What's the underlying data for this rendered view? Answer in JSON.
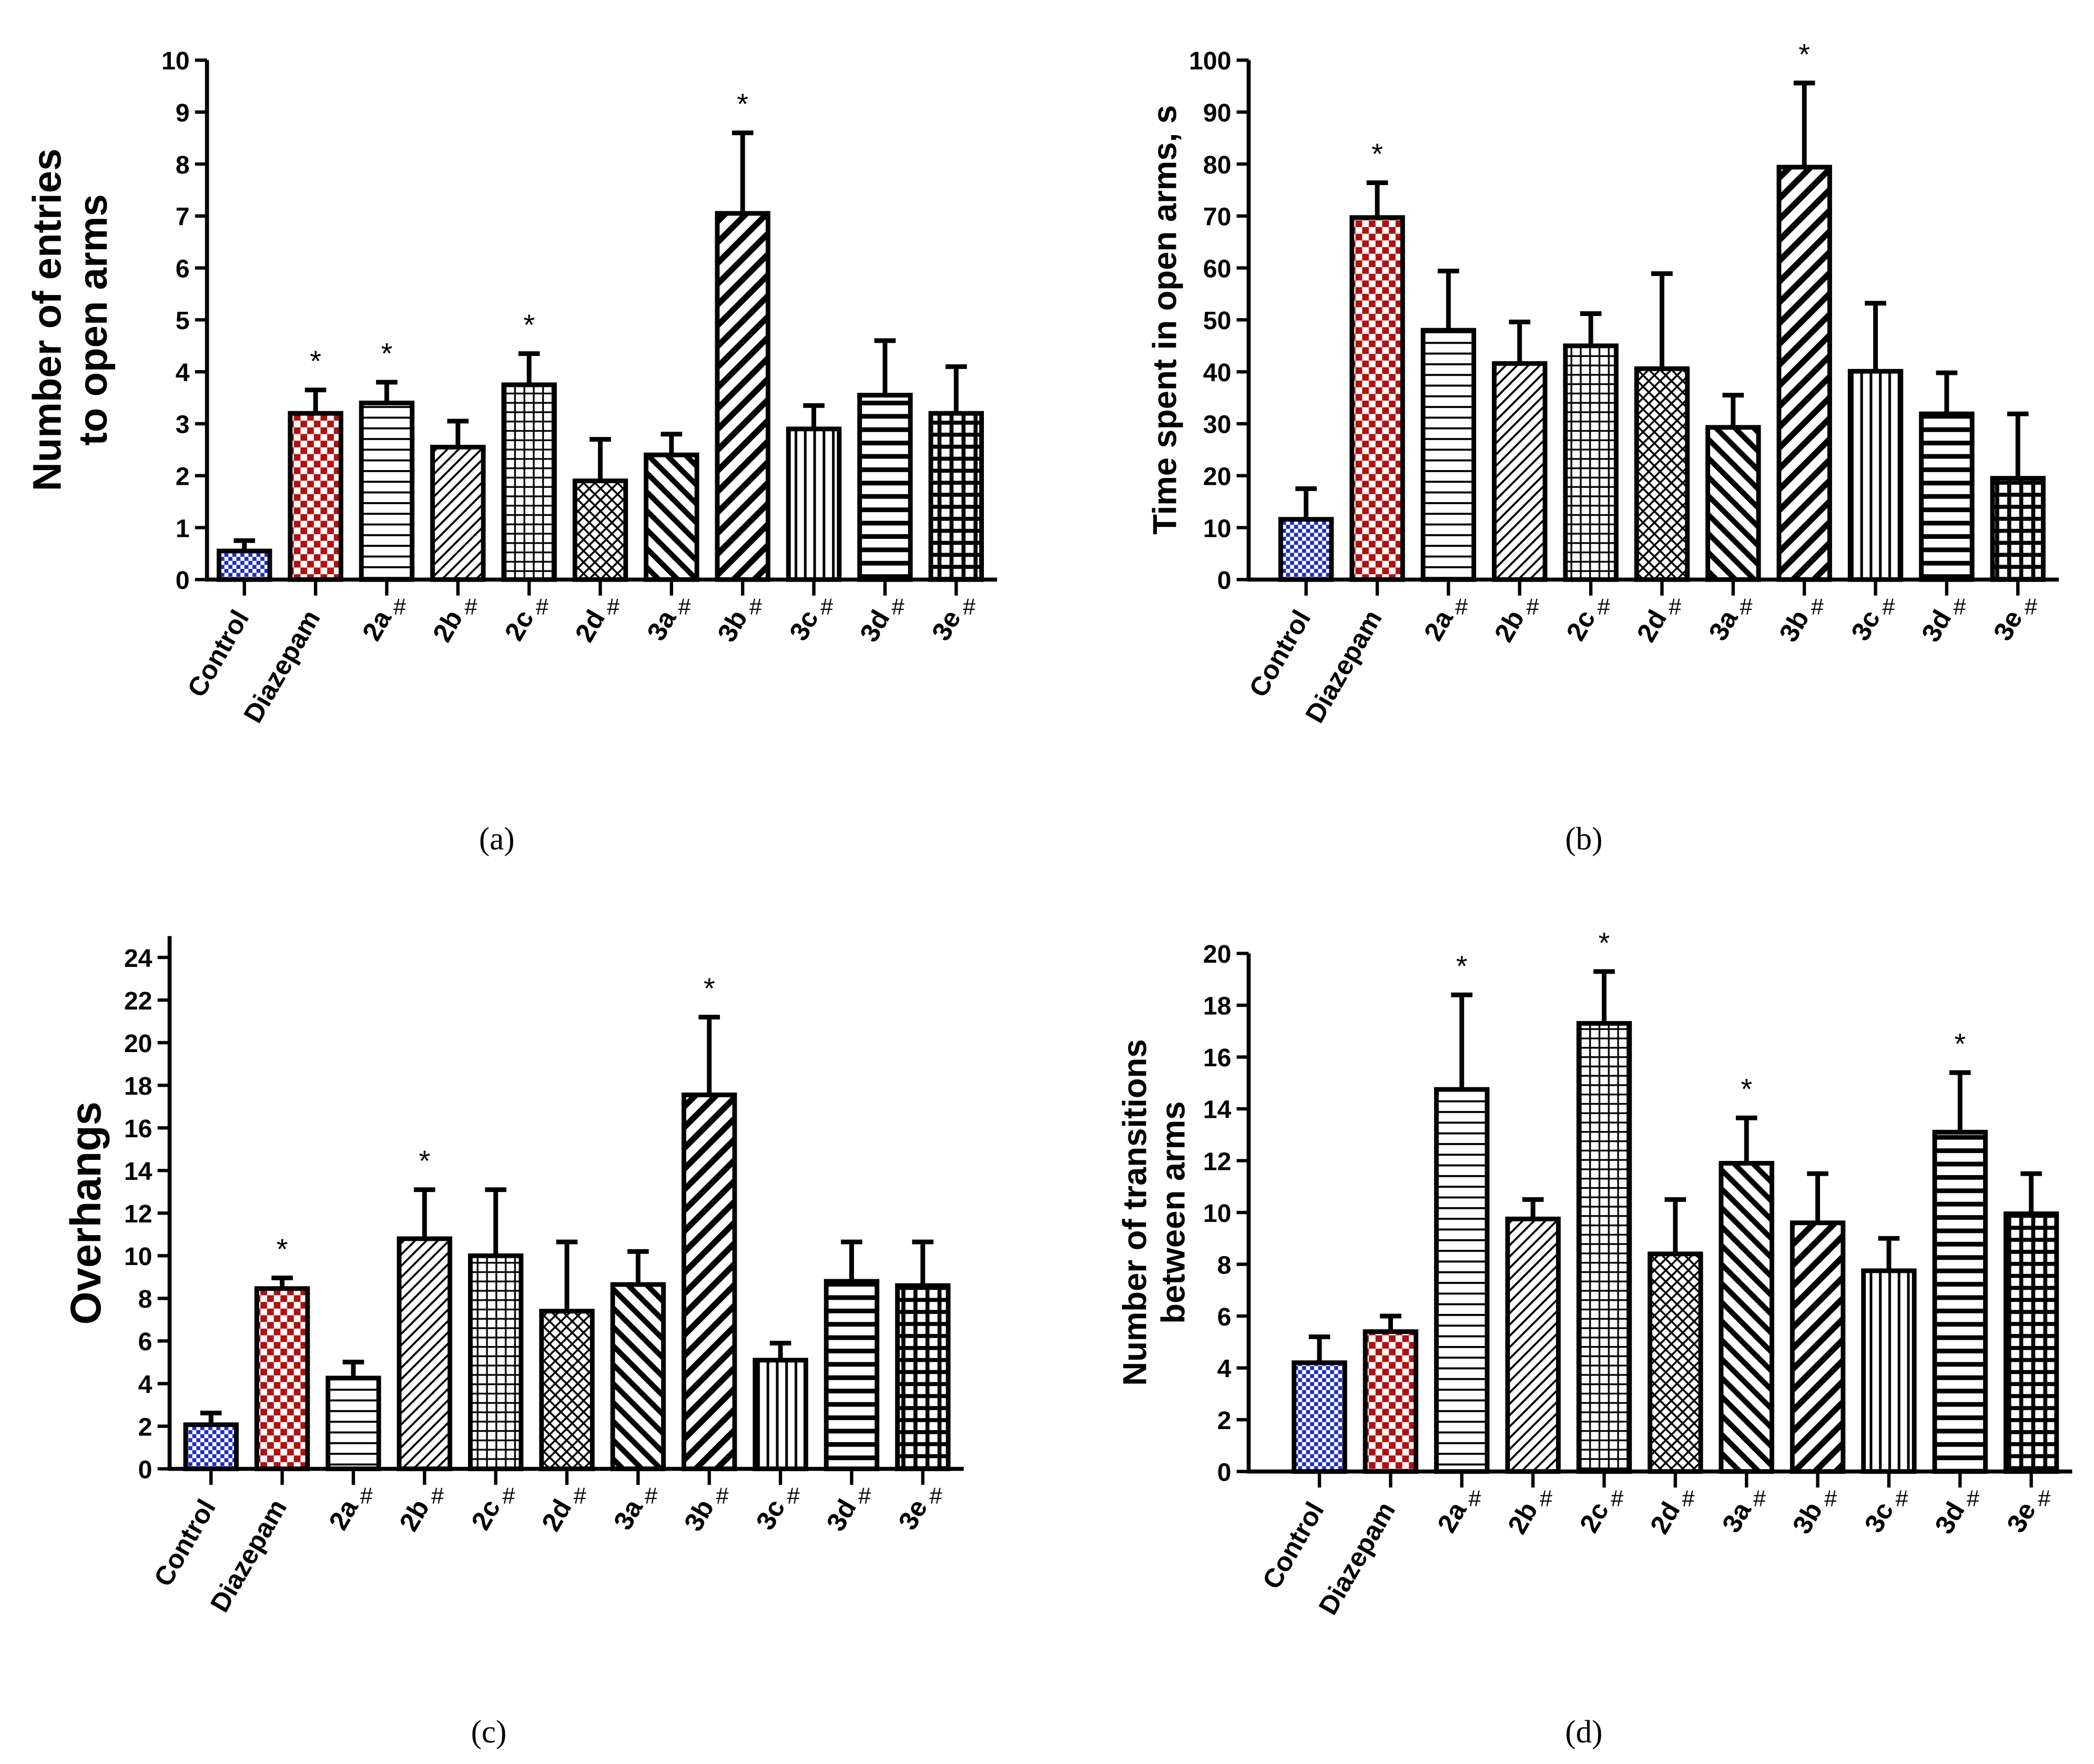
{
  "colors": {
    "control": "#1f2fb5",
    "diazepam": "#b01010",
    "ink": "#000000"
  },
  "chart_data": [
    {
      "type": "bar",
      "caption": "(a)",
      "ylabel": [
        "Number of entries",
        "to open arms"
      ],
      "ylim": [
        0,
        10
      ],
      "ystep": 1,
      "categories": [
        "Control",
        "Diazepam",
        "2a",
        "2b",
        "2c",
        "2d",
        "3a",
        "3b",
        "3c",
        "3d",
        "3e"
      ],
      "hash_marks": [
        "",
        "",
        "#",
        "#",
        "#",
        "#",
        "#",
        "#",
        "#",
        "#",
        "#"
      ],
      "values": [
        0.55,
        3.2,
        3.4,
        2.55,
        3.75,
        1.9,
        2.4,
        7.05,
        2.9,
        3.55,
        3.2
      ],
      "errors": [
        0.2,
        0.45,
        0.4,
        0.5,
        0.6,
        0.8,
        0.4,
        1.55,
        0.45,
        1.05,
        0.9
      ],
      "significance": [
        "",
        "*",
        "*",
        "",
        "*",
        "",
        "",
        "*",
        "",
        "",
        ""
      ]
    },
    {
      "type": "bar",
      "caption": "(b)",
      "ylabel": [
        "Time spent in open arms, s"
      ],
      "ylim": [
        0,
        100
      ],
      "ystep": 10,
      "categories": [
        "Control",
        "Diazepam",
        "2a",
        "2b",
        "2c",
        "2d",
        "3a",
        "3b",
        "3c",
        "3d",
        "3e"
      ],
      "hash_marks": [
        "",
        "",
        "#",
        "#",
        "#",
        "#",
        "#",
        "#",
        "#",
        "#",
        "#"
      ],
      "values": [
        11.6,
        69.7,
        48,
        41.6,
        45,
        40.6,
        29.3,
        79.4,
        40.1,
        31.9,
        19.5
      ],
      "errors": [
        5.9,
        6.7,
        11.4,
        8,
        6.2,
        18.3,
        6.2,
        16.2,
        13.1,
        7.9,
        12.4
      ],
      "significance": [
        "",
        "*",
        "",
        "",
        "",
        "",
        "",
        "*",
        "",
        "",
        ""
      ]
    },
    {
      "type": "bar",
      "caption": "(c)",
      "ylabel": [
        "Overhangs"
      ],
      "ylim": [
        0,
        24
      ],
      "ystep": 2,
      "categories": [
        "Control",
        "Diazepam",
        "2a",
        "2b",
        "2c",
        "2d",
        "3a",
        "3b",
        "3c",
        "3d",
        "3e"
      ],
      "hash_marks": [
        "",
        "",
        "#",
        "#",
        "#",
        "#",
        "#",
        "#",
        "#",
        "#",
        "#"
      ],
      "values": [
        2.07,
        8.46,
        4.26,
        10.8,
        10.0,
        7.4,
        8.65,
        17.55,
        5.1,
        8.8,
        8.6
      ],
      "errors": [
        0.55,
        0.5,
        0.75,
        2.3,
        3.1,
        3.25,
        1.55,
        3.65,
        0.8,
        1.85,
        2.05
      ],
      "significance": [
        "",
        "*",
        "",
        "*",
        "",
        "",
        "",
        "*",
        "",
        "",
        ""
      ]
    },
    {
      "type": "bar",
      "caption": "(d)",
      "ylabel": [
        "Number of transitions",
        "between arms"
      ],
      "ylim": [
        0,
        20
      ],
      "ystep": 2,
      "categories": [
        "Control",
        "Diazepam",
        "2a",
        "2b",
        "2c",
        "2d",
        "3a",
        "3b",
        "3c",
        "3d",
        "3e"
      ],
      "hash_marks": [
        "",
        "",
        "#",
        "#",
        "#",
        "#",
        "#",
        "#",
        "#",
        "#",
        "#"
      ],
      "values": [
        4.2,
        5.4,
        14.75,
        9.75,
        17.3,
        8.4,
        11.9,
        9.6,
        7.75,
        13.1,
        9.95
      ],
      "errors": [
        1.0,
        0.6,
        3.65,
        0.75,
        2.0,
        2.1,
        1.75,
        1.9,
        1.25,
        2.3,
        1.55
      ],
      "significance": [
        "",
        "",
        "*",
        "",
        "*",
        "",
        "*",
        "",
        "",
        "*",
        ""
      ]
    }
  ]
}
